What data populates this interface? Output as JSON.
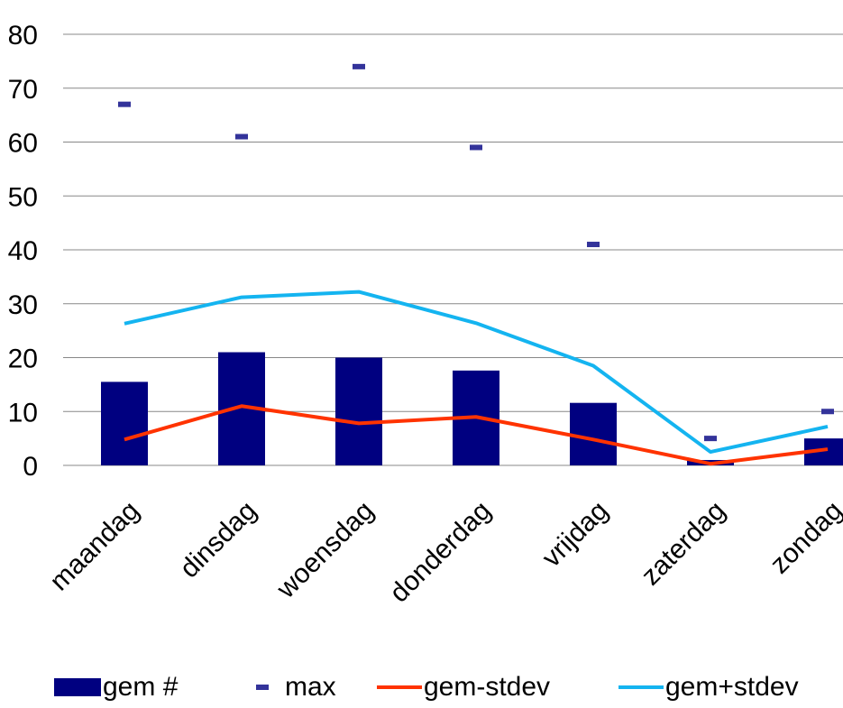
{
  "chart_data": {
    "type": "bar",
    "categories": [
      "maandag",
      "dinsdag",
      "woensdag",
      "donderdag",
      "vrijdag",
      "zaterdag",
      "zondag"
    ],
    "series": [
      {
        "name": "gem #",
        "type": "bar",
        "color": "#000080",
        "values": [
          15.5,
          21,
          20,
          17.6,
          11.6,
          1,
          5
        ]
      },
      {
        "name": "max",
        "type": "marker",
        "color": "#33339a",
        "values": [
          67,
          61,
          74,
          59,
          41,
          5,
          10
        ]
      },
      {
        "name": "gem-stdev",
        "type": "line",
        "color": "#ff3300",
        "values": [
          4.8,
          11,
          7.8,
          9,
          4.8,
          0.3,
          3
        ]
      },
      {
        "name": "gem+stdev",
        "type": "line",
        "color": "#14b4f0",
        "values": [
          26.3,
          31.2,
          32.2,
          26.4,
          18.5,
          2.5,
          7.2
        ]
      }
    ],
    "y_ticks": [
      "0",
      "10",
      "20",
      "30",
      "40",
      "50",
      "60",
      "70",
      "80"
    ],
    "ylim": [
      0,
      80
    ],
    "grid": true,
    "legend_position": "bottom"
  }
}
